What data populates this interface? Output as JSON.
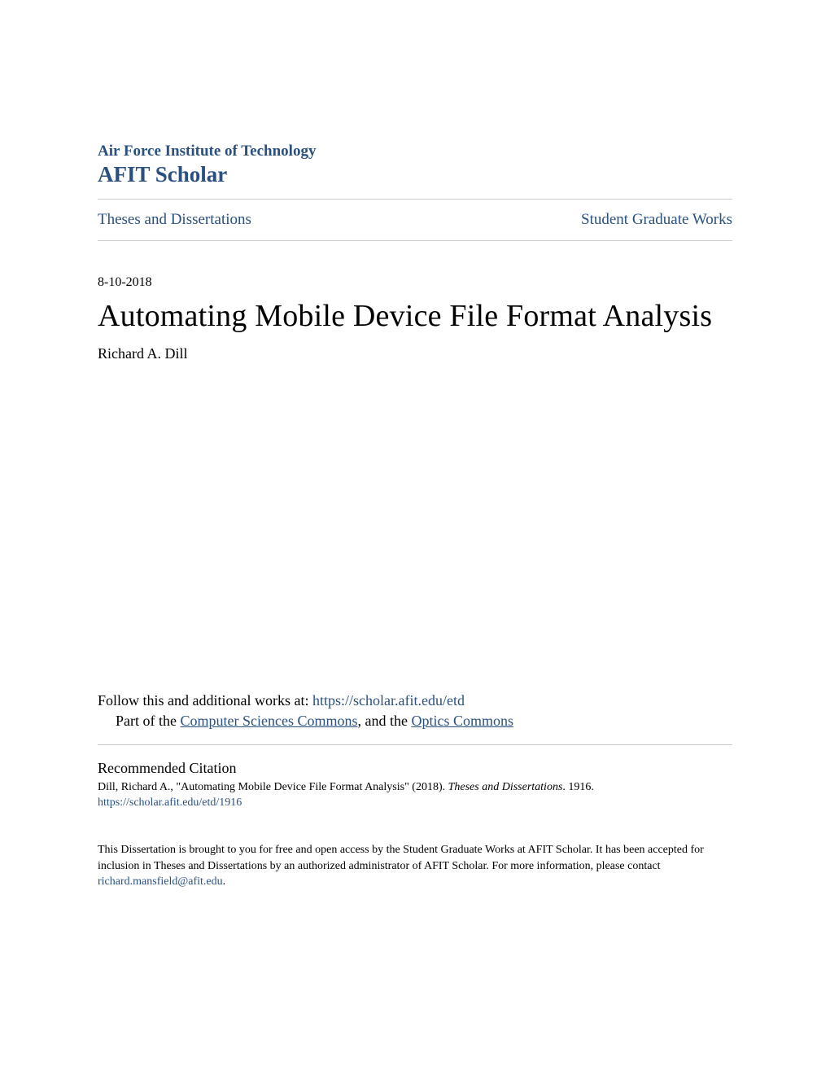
{
  "header": {
    "institution": "Air Force Institute of Technology",
    "scholar": "AFIT Scholar"
  },
  "nav": {
    "left": "Theses and Dissertations",
    "right": "Student Graduate Works"
  },
  "meta": {
    "date": "8-10-2018"
  },
  "paper": {
    "title": "Automating Mobile Device File Format Analysis",
    "author": "Richard A. Dill"
  },
  "follow": {
    "prefix": "Follow this and additional works at: ",
    "url": "https://scholar.afit.edu/etd"
  },
  "partof": {
    "prefix": "Part of the ",
    "link1": "Computer Sciences Commons",
    "middle": ", and the ",
    "link2": "Optics Commons"
  },
  "citation": {
    "heading": "Recommended Citation",
    "text_before": "Dill, Richard A., \"Automating Mobile Device File Format Analysis\" (2018). ",
    "text_italic": "Theses and Dissertations",
    "text_after": ". 1916.",
    "link": "https://scholar.afit.edu/etd/1916"
  },
  "footer": {
    "text_before": "This Dissertation is brought to you for free and open access by the Student Graduate Works at AFIT Scholar. It has been accepted for inclusion in Theses and Dissertations by an authorized administrator of AFIT Scholar. For more information, please contact ",
    "email": "richard.mansfield@afit.edu",
    "text_after": "."
  },
  "colors": {
    "link": "#2a5080",
    "text": "#000000",
    "divider": "#cccccc",
    "background": "#ffffff"
  }
}
